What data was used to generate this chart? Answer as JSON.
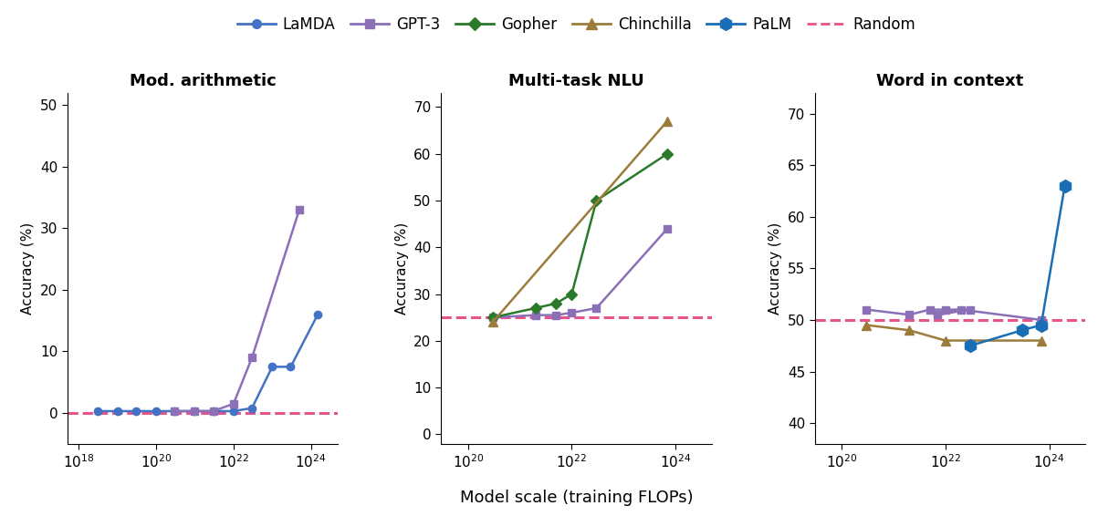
{
  "chart1": {
    "title": "Mod. arithmetic",
    "ylabel": "Accuracy (%)",
    "xlim": [
      5e+17,
      5e+24
    ],
    "ylim": [
      -5,
      52
    ],
    "yticks": [
      0,
      10,
      20,
      30,
      40,
      50
    ],
    "xticks": [
      1e+18,
      1e+20,
      1e+22,
      1e+24
    ],
    "xtick_labels": [
      "$10^{18}$",
      "$10^{20}$",
      "$10^{22}$",
      "$10^{24}$"
    ],
    "random_level": 0,
    "LaMDA": {
      "x": [
        3e+18,
        1e+19,
        3e+19,
        1e+20,
        3e+20,
        1e+21,
        3e+21,
        1e+22,
        3e+22,
        1e+23,
        3e+23,
        1.5e+24
      ],
      "y": [
        0.3,
        0.3,
        0.3,
        0.3,
        0.3,
        0.3,
        0.3,
        0.3,
        0.8,
        7.5,
        7.5,
        16
      ]
    },
    "GPT3": {
      "x": [
        3e+20,
        1e+21,
        3e+21,
        1e+22,
        3e+22,
        5e+23
      ],
      "y": [
        0.3,
        0.3,
        0.3,
        1.5,
        9.0,
        33
      ]
    }
  },
  "chart2": {
    "title": "Multi-task NLU",
    "ylabel": "Accuracy (%)",
    "xlim": [
      3e+19,
      5e+24
    ],
    "ylim": [
      -2,
      73
    ],
    "yticks": [
      0,
      10,
      20,
      30,
      40,
      50,
      60,
      70
    ],
    "xticks": [
      1e+20,
      1e+22,
      1e+24
    ],
    "xtick_labels": [
      "$10^{20}$",
      "$10^{22}$",
      "$10^{24}$"
    ],
    "random_level": 25,
    "GPT3": {
      "x": [
        3e+20,
        2e+21,
        5e+21,
        1e+22,
        3e+22,
        7e+23
      ],
      "y": [
        25.0,
        25.5,
        25.5,
        26.0,
        27.0,
        44
      ]
    },
    "Gopher": {
      "x": [
        3e+20,
        2e+21,
        5e+21,
        1e+22,
        3e+22,
        7e+23
      ],
      "y": [
        25.0,
        27.0,
        28.0,
        30.0,
        50.0,
        60
      ]
    },
    "Chinchilla": {
      "x": [
        3e+20,
        7e+23
      ],
      "y": [
        24.0,
        67
      ]
    }
  },
  "chart3": {
    "title": "Word in context",
    "ylabel": "Accuracy (%)",
    "xlim": [
      3e+19,
      5e+24
    ],
    "ylim": [
      38,
      72
    ],
    "yticks": [
      40,
      45,
      50,
      55,
      60,
      65,
      70
    ],
    "xticks": [
      1e+20,
      1e+22,
      1e+24
    ],
    "xtick_labels": [
      "$10^{20}$",
      "$10^{22}$",
      "$10^{24}$"
    ],
    "random_level": 50,
    "GPT3": {
      "x": [
        3e+20,
        2e+21,
        5e+21,
        1e+22,
        3e+22,
        7e+21,
        2e+22,
        7e+23
      ],
      "y": [
        51.0,
        50.5,
        51.0,
        51.0,
        51.0,
        50.5,
        51.0,
        50.0
      ]
    },
    "Chinchilla": {
      "x": [
        3e+20,
        2e+21,
        1e+22,
        7e+23
      ],
      "y": [
        49.5,
        49.0,
        48.0,
        48.0
      ]
    },
    "PaLM": {
      "x": [
        3e+22,
        3e+23,
        7e+23,
        2e+24
      ],
      "y": [
        47.5,
        49.0,
        49.5,
        63
      ]
    }
  },
  "colors": {
    "LaMDA": "#4472c4",
    "GPT3": "#8b70b8",
    "Gopher": "#2a7a2a",
    "Chinchilla": "#9c7c3a",
    "PaLM": "#1a6eb5",
    "Random": "#e8538a"
  },
  "xlabel": "Model scale (training FLOPs)",
  "background_color": "#ffffff"
}
